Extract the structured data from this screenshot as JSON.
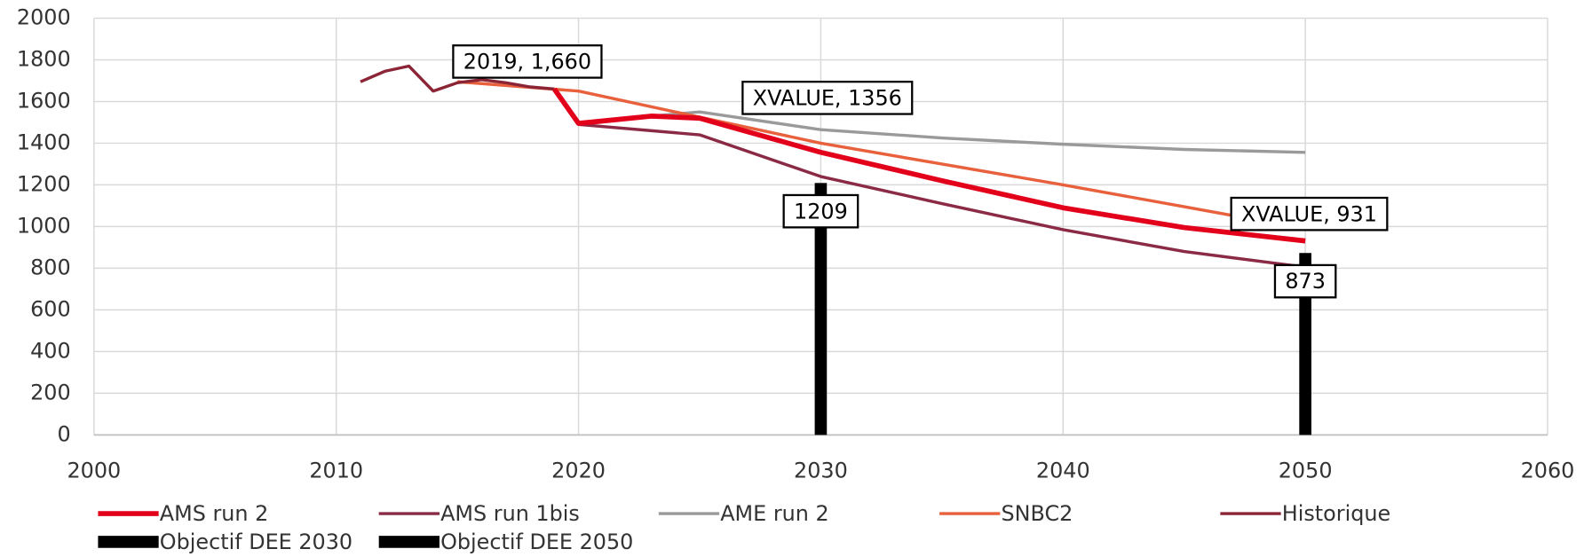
{
  "chart_data": {
    "type": "line",
    "xlim": [
      2000,
      2060
    ],
    "xticks": [
      2000,
      2010,
      2020,
      2030,
      2040,
      2050,
      2060
    ],
    "ylim": [
      0,
      2000
    ],
    "yticks": [
      0,
      200,
      400,
      600,
      800,
      1000,
      1200,
      1400,
      1600,
      1800,
      2000
    ],
    "grid": true,
    "legend": "bottom",
    "series": [
      {
        "name": "AMS run 2",
        "color": "#e3001b",
        "x": [
          2019,
          2020,
          2023,
          2025,
          2030,
          2035,
          2040,
          2045,
          2050
        ],
        "values": [
          1660,
          1495,
          1530,
          1520,
          1356,
          1220,
          1090,
          995,
          931
        ]
      },
      {
        "name": "AMS run 1bis",
        "color": "#8b2a45",
        "x": [
          2020,
          2025,
          2030,
          2035,
          2040,
          2045,
          2050
        ],
        "values": [
          1490,
          1440,
          1240,
          1110,
          985,
          880,
          805
        ]
      },
      {
        "name": "AME run 2",
        "color": "#9a9a9a",
        "x": [
          2020,
          2023,
          2025,
          2030,
          2035,
          2040,
          2045,
          2050
        ],
        "values": [
          1495,
          1530,
          1550,
          1465,
          1425,
          1395,
          1370,
          1356
        ]
      },
      {
        "name": "SNBC2",
        "color": "#e8603c",
        "x": [
          2015,
          2020,
          2025,
          2030,
          2035,
          2040,
          2045,
          2050
        ],
        "values": [
          1695,
          1650,
          1525,
          1400,
          1300,
          1200,
          1095,
          990
        ]
      },
      {
        "name": "Historique",
        "color": "#8b2535",
        "x": [
          2011,
          2012,
          2013,
          2014,
          2015,
          2016,
          2017,
          2018,
          2019
        ],
        "values": [
          1695,
          1745,
          1770,
          1650,
          1690,
          1705,
          1690,
          1670,
          1660
        ]
      },
      {
        "name": "Objectif DEE 2030",
        "type": "bar",
        "color": "#000000",
        "x": [
          2030
        ],
        "values": [
          1209
        ]
      },
      {
        "name": "Objectif DEE 2050",
        "type": "bar",
        "color": "#000000",
        "x": [
          2050
        ],
        "values": [
          873
        ]
      }
    ],
    "annotations": [
      "2019,  1,660",
      "XVALUE, 1356",
      "XVALUE, 931"
    ]
  }
}
